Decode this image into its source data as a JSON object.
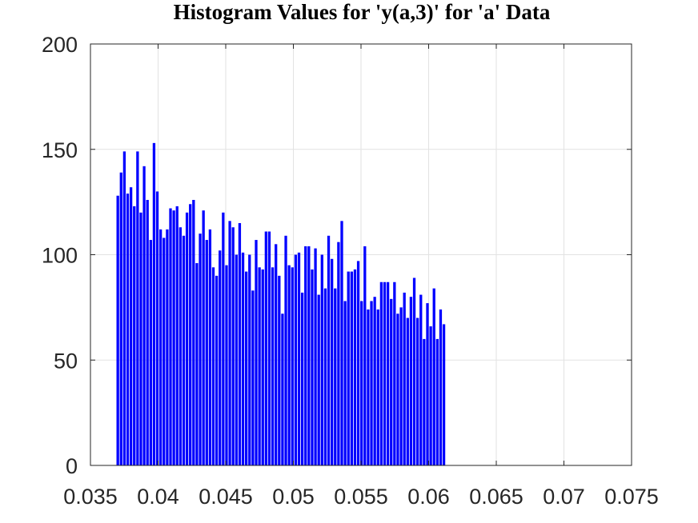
{
  "chart_data": {
    "type": "bar",
    "title": "Histogram Values for 'y(a,3)' for 'a' Data",
    "xlabel": "",
    "ylabel": "",
    "xlim": [
      0.035,
      0.075
    ],
    "ylim": [
      0,
      200
    ],
    "xticks": [
      "0.035",
      "0.04",
      "0.045",
      "0.05",
      "0.055",
      "0.06",
      "0.065",
      "0.07",
      "0.075"
    ],
    "yticks": [
      "0",
      "50",
      "100",
      "150",
      "200"
    ],
    "grid": true,
    "bar_color": "#0000ff",
    "bin_start": 0.0369,
    "bin_width": 0.0002435,
    "values": [
      128,
      139,
      149,
      129,
      132,
      123,
      149,
      120,
      142,
      126,
      107,
      153,
      130,
      112,
      108,
      112,
      122,
      121,
      123,
      113,
      109,
      120,
      124,
      126,
      96,
      110,
      121,
      107,
      112,
      94,
      90,
      102,
      120,
      95,
      116,
      113,
      100,
      115,
      101,
      92,
      100,
      83,
      107,
      94,
      93,
      111,
      111,
      94,
      105,
      90,
      72,
      109,
      95,
      94,
      100,
      101,
      82,
      104,
      104,
      93,
      103,
      81,
      100,
      84,
      109,
      98,
      84,
      106,
      116,
      78,
      92,
      92,
      93,
      97,
      78,
      104,
      74,
      78,
      80,
      74,
      87,
      87,
      87,
      79,
      87,
      72,
      75,
      82,
      70,
      80,
      89,
      70,
      81,
      60,
      77,
      66,
      84,
      60,
      74,
      67
    ]
  }
}
